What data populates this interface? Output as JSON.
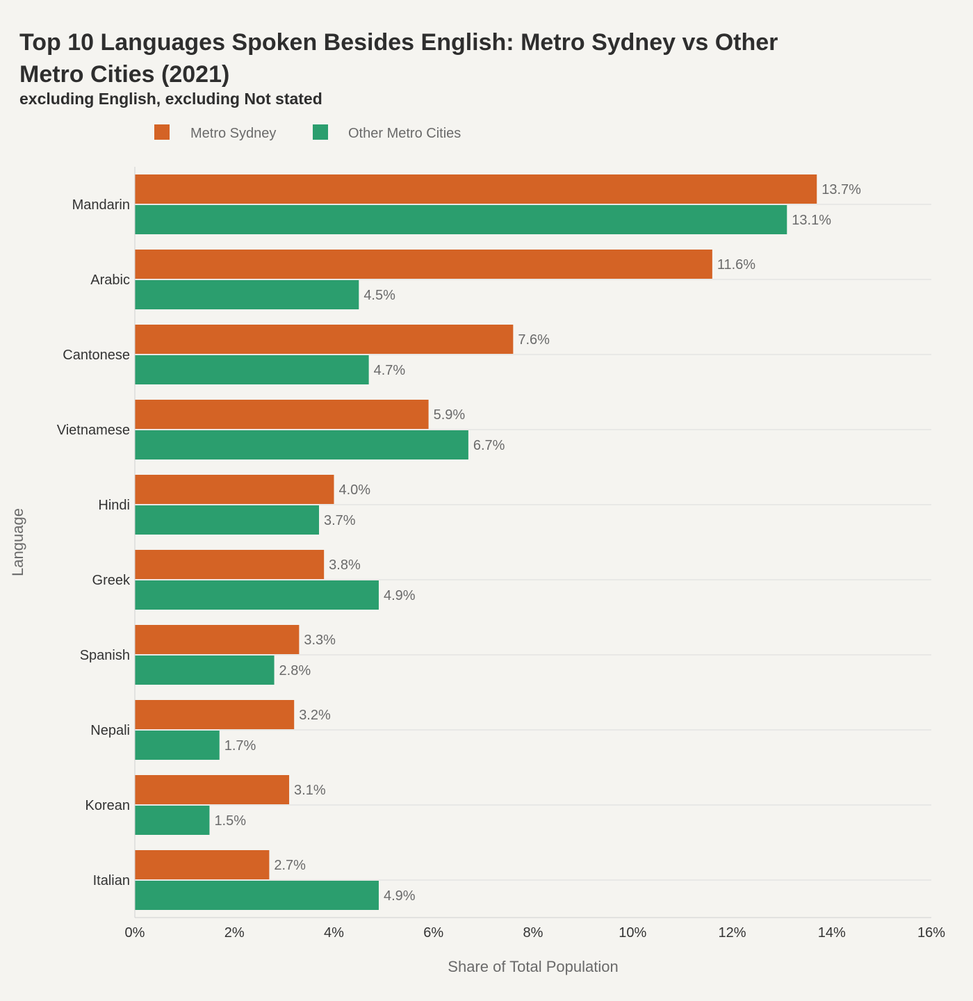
{
  "chart_data": {
    "type": "bar",
    "orientation": "horizontal",
    "title_line1": "Top 10 Languages Spoken Besides English: Metro Sydney vs Other",
    "title_line2": "Metro Cities (2021)",
    "subtitle": "excluding English, excluding Not stated",
    "xlabel": "Share of Total Population",
    "ylabel": "Language",
    "xlim": [
      0,
      16
    ],
    "x_ticks": [
      "0%",
      "2%",
      "4%",
      "6%",
      "8%",
      "10%",
      "12%",
      "14%",
      "16%"
    ],
    "categories": [
      "Mandarin",
      "Arabic",
      "Cantonese",
      "Vietnamese",
      "Hindi",
      "Greek",
      "Spanish",
      "Nepali",
      "Korean",
      "Italian"
    ],
    "series": [
      {
        "name": "Metro Sydney",
        "color": "#d46325",
        "values": [
          13.7,
          11.6,
          7.6,
          5.9,
          4.0,
          3.8,
          3.3,
          3.2,
          3.1,
          2.7
        ],
        "labels": [
          "13.7%",
          "11.6%",
          "7.6%",
          "5.9%",
          "4.0%",
          "3.8%",
          "3.3%",
          "3.2%",
          "3.1%",
          "2.7%"
        ]
      },
      {
        "name": "Other Metro Cities",
        "color": "#2b9e6e",
        "values": [
          13.1,
          4.5,
          4.7,
          6.7,
          3.7,
          4.9,
          2.8,
          1.7,
          1.5,
          4.9
        ],
        "labels": [
          "13.1%",
          "4.5%",
          "4.7%",
          "6.7%",
          "3.7%",
          "4.9%",
          "2.8%",
          "1.7%",
          "1.5%",
          "4.9%"
        ]
      }
    ],
    "legend_position": "top-left",
    "grid": "horizontal"
  }
}
